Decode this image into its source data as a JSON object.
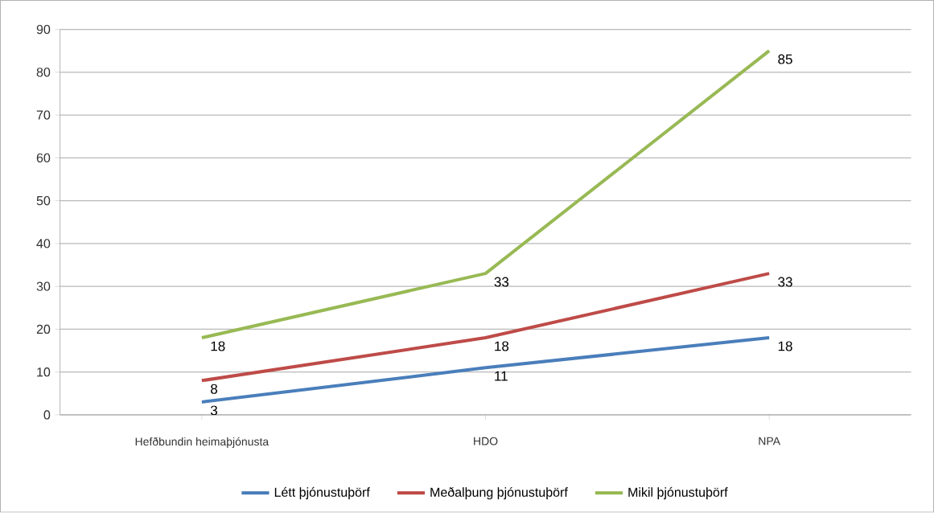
{
  "chart_data": {
    "type": "line",
    "categories": [
      "Hefðbundin heimaþjónusta",
      "HDO",
      "NPA"
    ],
    "series": [
      {
        "name": "Létt þjónustuþörf",
        "color": "#4a7ebb",
        "values": [
          3,
          11,
          18
        ]
      },
      {
        "name": "Meðalþung þjónustuþörf",
        "color": "#be4b48",
        "values": [
          8,
          18,
          33
        ]
      },
      {
        "name": "Mikil þjónustuþörf",
        "color": "#98b954",
        "values": [
          18,
          33,
          85
        ]
      }
    ],
    "ylim": [
      0,
      90
    ],
    "yticks": [
      0,
      10,
      20,
      30,
      40,
      50,
      60,
      70,
      80,
      90
    ],
    "grid": "y",
    "legend": "bottom",
    "marker": "none",
    "line_style": "solid",
    "data_labels": true
  }
}
